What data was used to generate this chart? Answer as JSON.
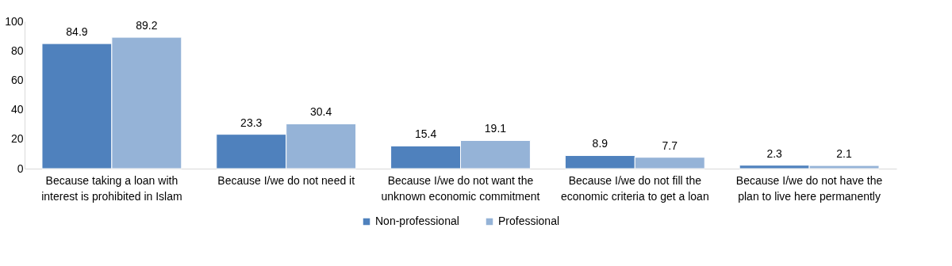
{
  "chart_data": {
    "type": "bar",
    "categories": [
      "Because taking a loan with interest is prohibited in Islam",
      "Because I/we do not need it",
      "Because I/we do not want the unknown economic commitment",
      "Because I/we do not fill the economic criteria to get a loan",
      "Because I/we do not have the plan to live here permanently"
    ],
    "series": [
      {
        "name": "Non-professional",
        "color": "#4f81bd",
        "values": [
          84.9,
          23.3,
          15.4,
          8.9,
          2.3
        ]
      },
      {
        "name": "Professional",
        "color": "#95b3d7",
        "values": [
          89.2,
          30.4,
          19.1,
          7.7,
          2.1
        ]
      }
    ],
    "ylim": [
      0,
      100
    ],
    "yticks": [
      0,
      20,
      40,
      60,
      80,
      100
    ],
    "data_labels": true,
    "legend": "bottom",
    "grid": false
  }
}
